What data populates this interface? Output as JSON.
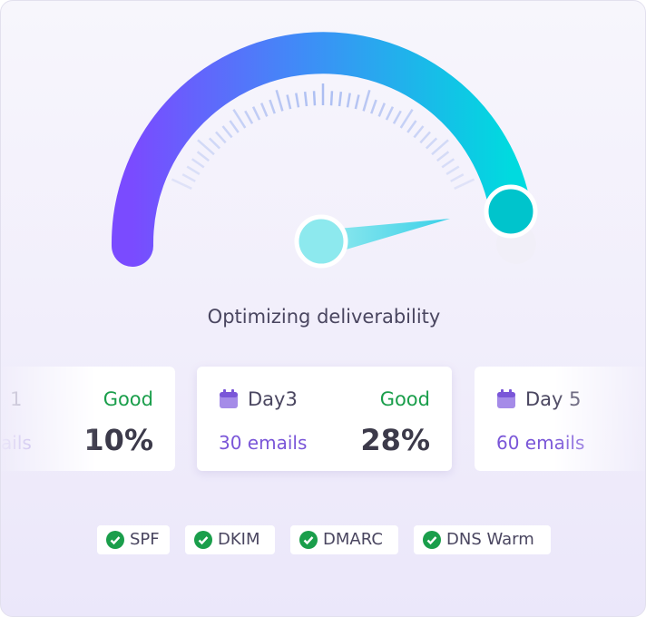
{
  "title": "Optimizing deliverability",
  "cards": [
    {
      "day": "1",
      "status": "Good",
      "emails": "ails",
      "percent": "10%"
    },
    {
      "day": "Day3",
      "status": "Good",
      "emails": "30 emails",
      "percent": "28%"
    },
    {
      "day": "Day 5",
      "emails": "60 emails"
    }
  ],
  "badges": [
    "SPF",
    "DKIM",
    "DMARC",
    "DNS Warm"
  ]
}
